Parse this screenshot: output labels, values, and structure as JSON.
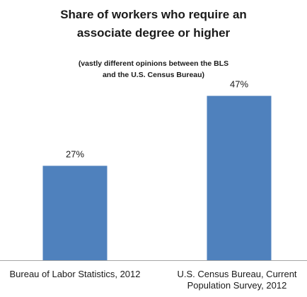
{
  "chart_data": {
    "type": "bar",
    "title_lines": [
      "Share of workers who require an",
      "associate degree or higher"
    ],
    "subtitle_lines": [
      "(vastly different opinions between the BLS",
      "and the U.S. Census Bureau)"
    ],
    "categories": [
      {
        "lines": [
          "Bureau of Labor Statistics, 2012"
        ]
      },
      {
        "lines": [
          "U.S. Census Bureau, Current",
          "Population Survey, 2012"
        ]
      }
    ],
    "values": [
      27,
      47
    ],
    "data_labels": [
      "27%",
      "47%"
    ],
    "ylim": [
      0,
      55
    ],
    "grid": false,
    "legend": "none",
    "colors": {
      "bar": "#4f81bd",
      "axis": "#a6a6a6"
    }
  }
}
